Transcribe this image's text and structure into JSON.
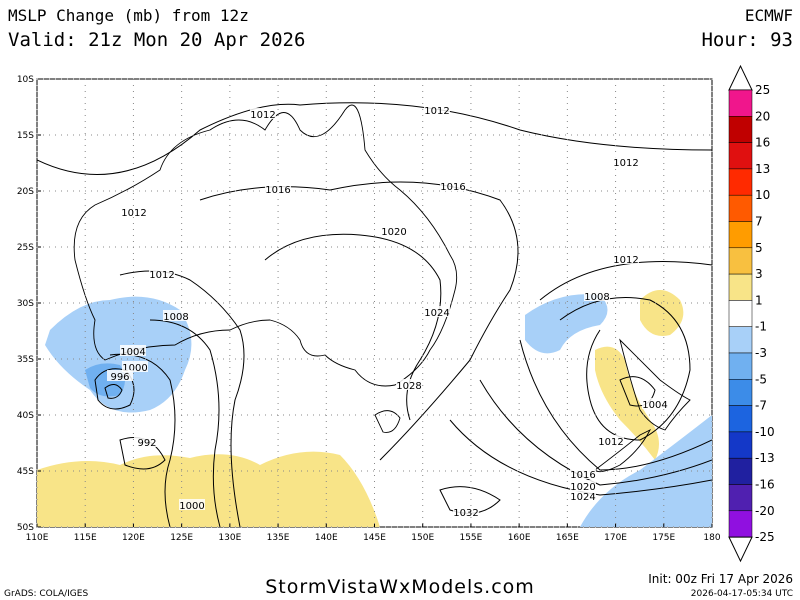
{
  "header": {
    "title": "MSLP Change (mb) from 12z",
    "valid": "Valid: 21z Mon 20 Apr 2026",
    "model": "ECMWF",
    "hour": "Hour: 93"
  },
  "map": {
    "lat_labels": [
      "10S",
      "15S",
      "20S",
      "25S",
      "30S",
      "35S",
      "40S",
      "45S",
      "50S"
    ],
    "lon_labels": [
      "110E",
      "115E",
      "120E",
      "125E",
      "130E",
      "135E",
      "140E",
      "145E",
      "150E",
      "155E",
      "160E",
      "165E",
      "170E",
      "175E",
      "180"
    ],
    "contour_labels": [
      "1012",
      "1012",
      "1012",
      "1012",
      "1016",
      "1016",
      "1020",
      "1012",
      "1012",
      "1008",
      "1008",
      "1024",
      "1004",
      "1000",
      "996",
      "1028",
      "1004",
      "992",
      "1012",
      "1016",
      "1020",
      "1024",
      "1000",
      "1032"
    ]
  },
  "colorbar": {
    "labels": [
      "25",
      "20",
      "16",
      "13",
      "10",
      "7",
      "5",
      "3",
      "1",
      "-1",
      "-3",
      "-5",
      "-7",
      "-10",
      "-13",
      "-16",
      "-20",
      "-25"
    ],
    "colors": [
      "#f0168c",
      "#c00000",
      "#e01010",
      "#ff2a00",
      "#ff5a00",
      "#ff9c00",
      "#f8c040",
      "#f8e488",
      "#ffffff",
      "#a8d0f8",
      "#70b0f0",
      "#3c8ce8",
      "#1c64e0",
      "#1438c8",
      "#2020a0",
      "#5020b0",
      "#9010e0"
    ]
  },
  "footer": {
    "credit": "GrADS: COLA/IGES",
    "site": "StormVistaWxModels.com",
    "init": "Init: 00z Fri 17 Apr 2026",
    "stamp": "2026-04-17-05:34 UTC"
  }
}
